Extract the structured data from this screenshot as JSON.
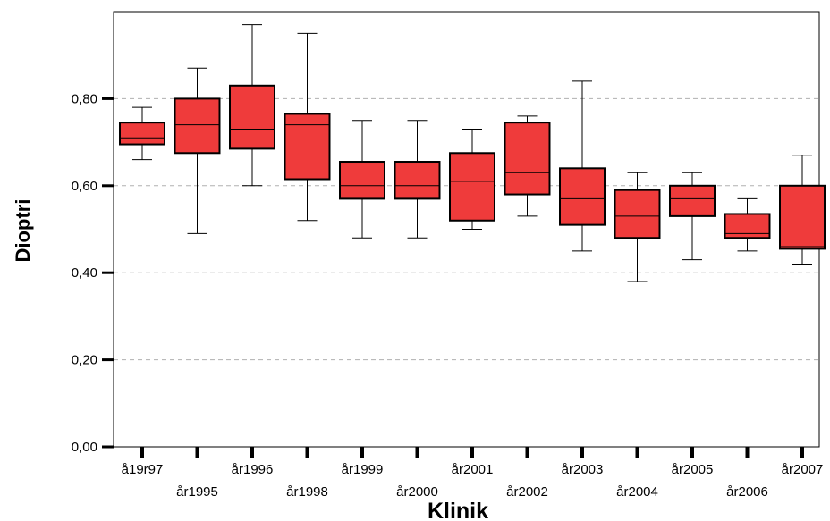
{
  "chart_data": {
    "type": "boxplot",
    "xlabel": "Klinik",
    "ylabel": "Dioptri",
    "ylim": [
      0,
      1.0
    ],
    "yticks": [
      0.0,
      0.2,
      0.4,
      0.6,
      0.8
    ],
    "ytick_labels": [
      "0,00",
      "0,20",
      "0,40",
      "0,60",
      "0,80"
    ],
    "grid": "horizontal-dashed",
    "box_color": "#ef3b3b",
    "categories": [
      "å19r97",
      "år1995",
      "år1996",
      "år1998",
      "år1999",
      "år2000",
      "år2001",
      "år2002",
      "år2003",
      "år2004",
      "år2005",
      "år2006",
      "år2007"
    ],
    "boxes": [
      {
        "min": 0.66,
        "q1": 0.695,
        "median": 0.71,
        "q3": 0.745,
        "max": 0.78
      },
      {
        "min": 0.49,
        "q1": 0.675,
        "median": 0.74,
        "q3": 0.8,
        "max": 0.87
      },
      {
        "min": 0.6,
        "q1": 0.685,
        "median": 0.73,
        "q3": 0.83,
        "max": 0.97
      },
      {
        "min": 0.52,
        "q1": 0.615,
        "median": 0.74,
        "q3": 0.765,
        "max": 0.95
      },
      {
        "min": 0.48,
        "q1": 0.57,
        "median": 0.6,
        "q3": 0.655,
        "max": 0.75
      },
      {
        "min": 0.48,
        "q1": 0.57,
        "median": 0.6,
        "q3": 0.655,
        "max": 0.75
      },
      {
        "min": 0.5,
        "q1": 0.52,
        "median": 0.61,
        "q3": 0.675,
        "max": 0.73
      },
      {
        "min": 0.53,
        "q1": 0.58,
        "median": 0.63,
        "q3": 0.745,
        "max": 0.76
      },
      {
        "min": 0.45,
        "q1": 0.51,
        "median": 0.57,
        "q3": 0.64,
        "max": 0.84
      },
      {
        "min": 0.38,
        "q1": 0.48,
        "median": 0.53,
        "q3": 0.59,
        "max": 0.63
      },
      {
        "min": 0.43,
        "q1": 0.53,
        "median": 0.57,
        "q3": 0.6,
        "max": 0.63
      },
      {
        "min": 0.45,
        "q1": 0.48,
        "median": 0.49,
        "q3": 0.535,
        "max": 0.57
      },
      {
        "min": 0.42,
        "q1": 0.455,
        "median": 0.46,
        "q3": 0.6,
        "max": 0.67
      }
    ]
  }
}
